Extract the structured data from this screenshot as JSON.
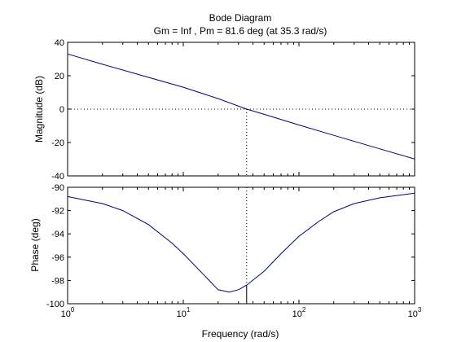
{
  "chart_data": [
    {
      "type": "line",
      "title": "Bode Diagram",
      "subtitle": "Gm = Inf ,  Pm = 81.6 deg (at 35.3 rad/s)",
      "ylabel": "Magnitude (dB)",
      "x_scale": "log",
      "xlim": [
        1,
        1000
      ],
      "ylim": [
        -40,
        40
      ],
      "y_ticks": [
        "40",
        "20",
        "0",
        "-20",
        "-40"
      ],
      "series": [
        {
          "x": [
            1,
            2,
            5,
            10,
            20,
            35.3,
            50,
            100,
            200,
            500,
            1000
          ],
          "values": [
            33.0,
            26.9,
            19.0,
            13.1,
            6.3,
            0,
            -3.1,
            -9.5,
            -15.7,
            -23.8,
            -29.9
          ]
        }
      ],
      "reference_line_y": 0,
      "marker_x": 35.3,
      "grid": false
    },
    {
      "type": "line",
      "xlabel": "Frequency  (rad/s)",
      "ylabel": "Phase (deg)",
      "x_scale": "log",
      "xlim": [
        1,
        1000
      ],
      "ylim": [
        -100,
        -90
      ],
      "x_ticks": [
        {
          "base": "10",
          "exp": "0"
        },
        {
          "base": "10",
          "exp": "1"
        },
        {
          "base": "10",
          "exp": "2"
        },
        {
          "base": "10",
          "exp": "3"
        }
      ],
      "y_ticks": [
        "-90",
        "-92",
        "-94",
        "-96",
        "-98",
        "-100"
      ],
      "series": [
        {
          "x": [
            1,
            2,
            3,
            5,
            8,
            10,
            15,
            20,
            25,
            30,
            35.3,
            50,
            70,
            100,
            150,
            200,
            300,
            500,
            1000
          ],
          "values": [
            -90.8,
            -91.4,
            -92.0,
            -93.2,
            -94.8,
            -95.7,
            -97.5,
            -98.8,
            -99.0,
            -98.8,
            -98.4,
            -97.2,
            -95.7,
            -94.2,
            -92.9,
            -92.1,
            -91.4,
            -90.9,
            -90.5
          ]
        }
      ],
      "marker_x": 35.3,
      "marker_y": -98.4,
      "grid": false
    }
  ]
}
